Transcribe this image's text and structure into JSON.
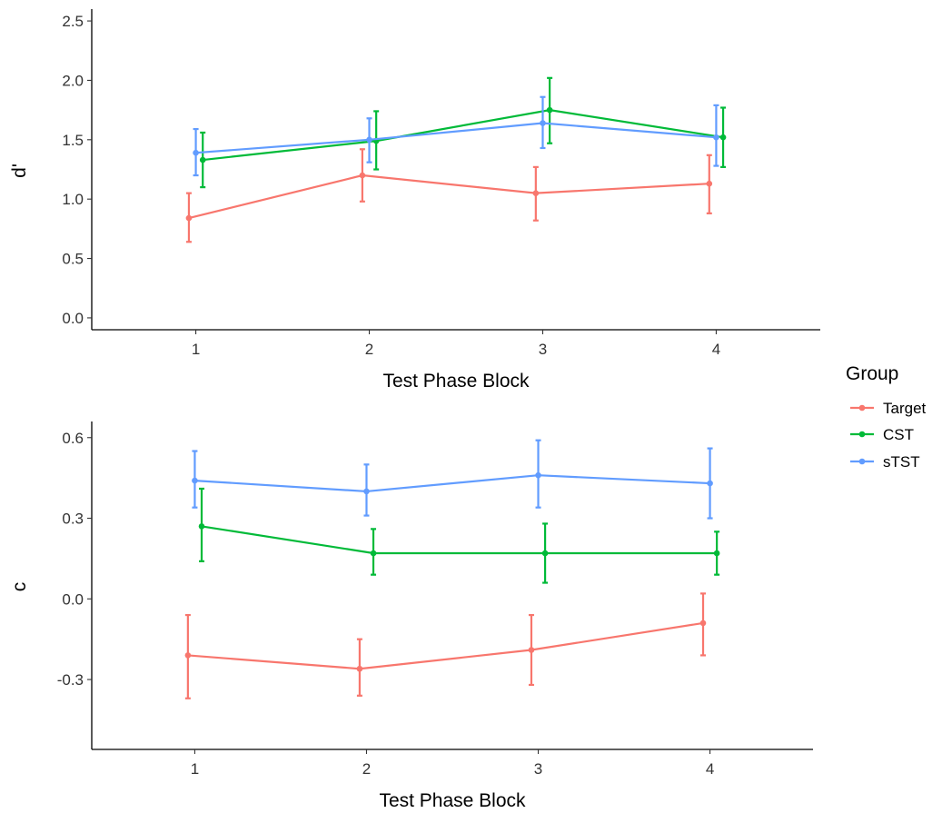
{
  "chart_data": [
    {
      "type": "line",
      "panel": "top",
      "xlabel": "Test Phase Block",
      "ylabel": "d'",
      "x": [
        1,
        2,
        3,
        4
      ],
      "xlim": [
        0.4,
        4.6
      ],
      "ylim": [
        -0.1,
        2.6
      ],
      "yticks": [
        0.0,
        0.5,
        1.0,
        1.5,
        2.0,
        2.5
      ],
      "ytick_labels": [
        "0.0",
        "0.5",
        "1.0",
        "1.5",
        "2.0",
        "2.5"
      ],
      "xtick_labels": [
        "1",
        "2",
        "3",
        "4"
      ],
      "grid": false,
      "series": [
        {
          "name": "Target",
          "color": "#F8766D",
          "dodge": -0.04,
          "values": [
            0.84,
            1.2,
            1.05,
            1.13
          ],
          "lower": [
            0.64,
            0.98,
            0.82,
            0.88
          ],
          "upper": [
            1.05,
            1.42,
            1.27,
            1.37
          ]
        },
        {
          "name": "CST",
          "color": "#00BA38",
          "dodge": 0.04,
          "values": [
            1.33,
            1.49,
            1.75,
            1.52
          ],
          "lower": [
            1.1,
            1.25,
            1.47,
            1.27
          ],
          "upper": [
            1.56,
            1.74,
            2.02,
            1.77
          ]
        },
        {
          "name": "sTST",
          "color": "#619CFF",
          "dodge": 0.0,
          "values": [
            1.39,
            1.5,
            1.64,
            1.52
          ],
          "lower": [
            1.2,
            1.31,
            1.43,
            1.28
          ],
          "upper": [
            1.59,
            1.68,
            1.86,
            1.79
          ]
        }
      ]
    },
    {
      "type": "line",
      "panel": "bottom",
      "xlabel": "Test Phase Block",
      "ylabel": "c",
      "x": [
        1,
        2,
        3,
        4
      ],
      "xlim": [
        0.4,
        4.6
      ],
      "ylim": [
        -0.56,
        0.66
      ],
      "yticks": [
        -0.3,
        0.0,
        0.3,
        0.6
      ],
      "ytick_labels": [
        "-0.3",
        "0.0",
        "0.3",
        "0.6"
      ],
      "xtick_labels": [
        "1",
        "2",
        "3",
        "4"
      ],
      "grid": false,
      "series": [
        {
          "name": "Target",
          "color": "#F8766D",
          "dodge": -0.04,
          "values": [
            -0.21,
            -0.26,
            -0.19,
            -0.09
          ],
          "lower": [
            -0.37,
            -0.36,
            -0.32,
            -0.21
          ],
          "upper": [
            -0.06,
            -0.15,
            -0.06,
            0.02
          ]
        },
        {
          "name": "CST",
          "color": "#00BA38",
          "dodge": 0.04,
          "values": [
            0.27,
            0.17,
            0.17,
            0.17
          ],
          "lower": [
            0.14,
            0.09,
            0.06,
            0.09
          ],
          "upper": [
            0.41,
            0.26,
            0.28,
            0.25
          ]
        },
        {
          "name": "sTST",
          "color": "#619CFF",
          "dodge": 0.0,
          "values": [
            0.44,
            0.4,
            0.46,
            0.43
          ],
          "lower": [
            0.34,
            0.31,
            0.34,
            0.3
          ],
          "upper": [
            0.55,
            0.5,
            0.59,
            0.56
          ]
        }
      ]
    }
  ],
  "legend": {
    "title": "Group",
    "placement": "right",
    "items": [
      {
        "label": "Target",
        "color": "#F8766D"
      },
      {
        "label": "CST",
        "color": "#00BA38"
      },
      {
        "label": "sTST",
        "color": "#619CFF"
      }
    ]
  }
}
